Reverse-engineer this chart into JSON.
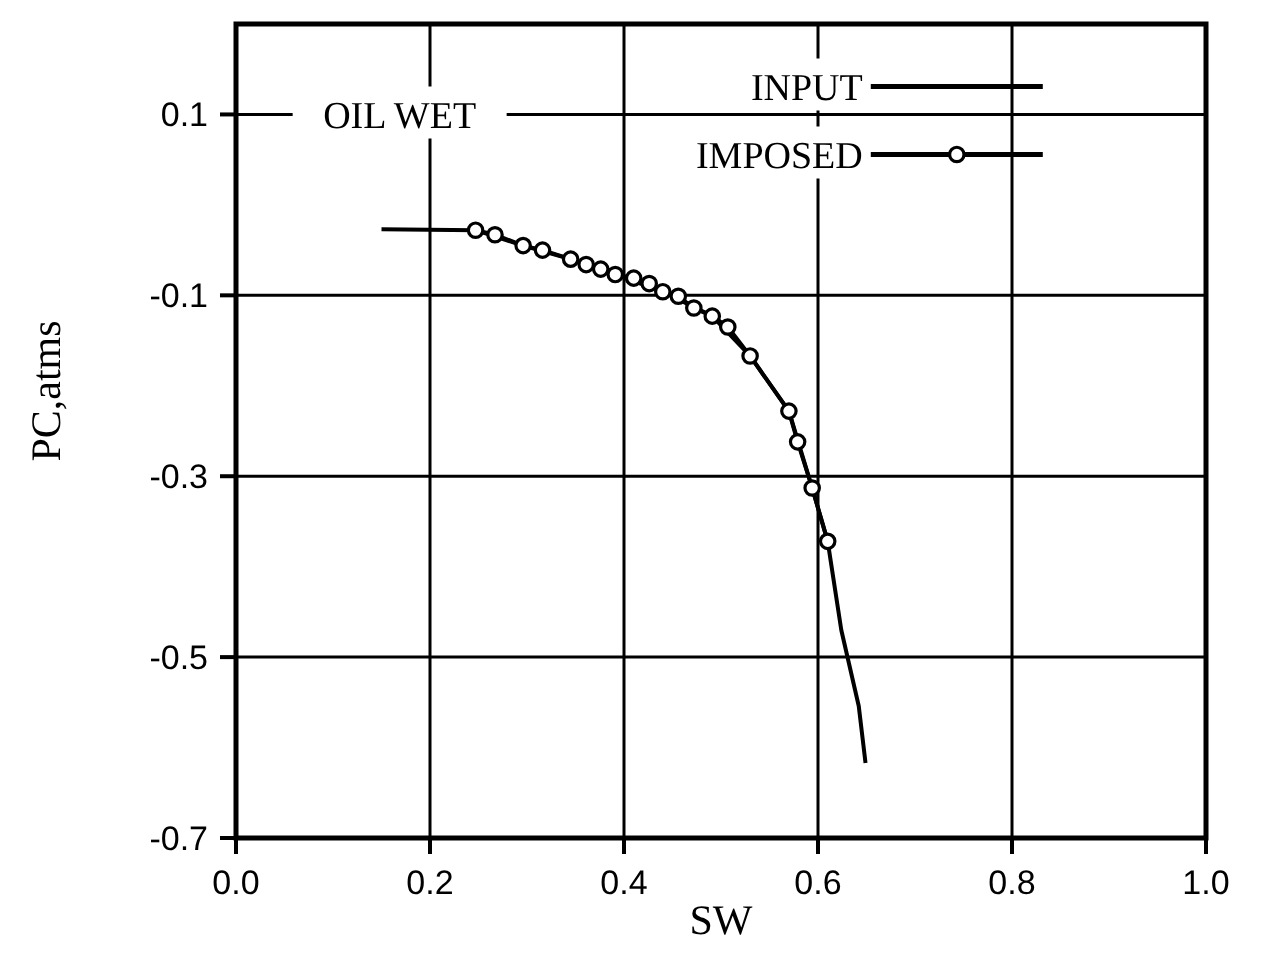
{
  "chart_data": {
    "type": "line",
    "title": "OIL WET",
    "xlabel": "SW",
    "ylabel": "PC,atms",
    "xlim": [
      0,
      1
    ],
    "ylim": [
      -0.7,
      0.2
    ],
    "xticks": [
      {
        "value": 0,
        "label": "0.0"
      },
      0.2,
      0.4,
      0.6,
      0.8,
      {
        "value": 1,
        "label": "1.0"
      }
    ],
    "yticks": [
      0.1,
      -0.1,
      -0.3,
      -0.5,
      -0.7
    ],
    "grid": true,
    "legend": "top",
    "series": [
      {
        "name": "INPUT",
        "color": "#000000",
        "x": [
          0.15,
          0.247,
          0.296,
          0.345,
          0.391,
          0.44,
          0.491,
          0.53,
          0.57,
          0.594,
          0.61,
          0.624,
          0.642,
          0.649
        ],
        "values": [
          -0.027,
          -0.028,
          -0.045,
          -0.06,
          -0.077,
          -0.096,
          -0.123,
          -0.167,
          -0.228,
          -0.313,
          -0.372,
          -0.47,
          -0.554,
          -0.617
        ]
      },
      {
        "name": "IMPOSED",
        "color": "#000000",
        "marker": "circle",
        "x": [
          0.247,
          0.267,
          0.296,
          0.316,
          0.345,
          0.361,
          0.376,
          0.391,
          0.41,
          0.426,
          0.44,
          0.456,
          0.472,
          0.491,
          0.507,
          0.53,
          0.57,
          0.579,
          0.594,
          0.61
        ],
        "values": [
          -0.028,
          -0.033,
          -0.045,
          -0.05,
          -0.06,
          -0.066,
          -0.071,
          -0.077,
          -0.081,
          -0.087,
          -0.096,
          -0.101,
          -0.114,
          -0.123,
          -0.135,
          -0.167,
          -0.228,
          -0.262,
          -0.313,
          -0.372
        ]
      }
    ]
  }
}
